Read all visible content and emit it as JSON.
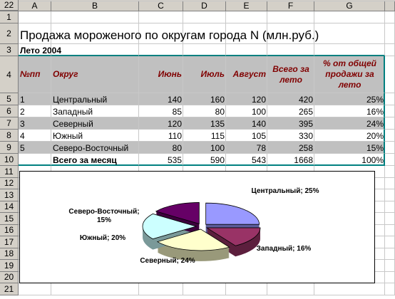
{
  "columns": [
    "A",
    "B",
    "C",
    "D",
    "E",
    "F",
    "G"
  ],
  "row_numbers": [
    1,
    2,
    3,
    4,
    5,
    6,
    7,
    8,
    9,
    10,
    11,
    12,
    13,
    14,
    15,
    16,
    17,
    18,
    19,
    20,
    21,
    22
  ],
  "title": "Продажа мороженого по округам города N (млн.руб.)",
  "subtitle": "Лето 2004",
  "table": {
    "header": [
      "№пп",
      "Округ",
      "Июнь",
      "Июль",
      "Август",
      "Всего за лето",
      "% от общей продажи за лето"
    ],
    "rows": [
      [
        1,
        "Центральный",
        140,
        160,
        120,
        420,
        "25%"
      ],
      [
        2,
        "Западный",
        85,
        80,
        100,
        265,
        "16%"
      ],
      [
        3,
        "Северный",
        120,
        135,
        140,
        395,
        "24%"
      ],
      [
        4,
        "Южный",
        110,
        115,
        105,
        330,
        "20%"
      ],
      [
        5,
        "Северо-Восточный",
        80,
        100,
        78,
        258,
        "15%"
      ]
    ],
    "total": [
      "Всего за месяц",
      535,
      590,
      543,
      1668,
      "100%"
    ]
  },
  "chart_data": {
    "type": "pie",
    "values": [
      25,
      16,
      24,
      20,
      15
    ],
    "value_labels": [
      "Центральный; 25%",
      "Западный; 16%",
      "Северный; 24%",
      "Южный; 20%",
      "Северо-Восточный; 15%"
    ],
    "colors": [
      "#9999ff",
      "#993366",
      "#ffffcc",
      "#ccffff",
      "#660066"
    ]
  }
}
